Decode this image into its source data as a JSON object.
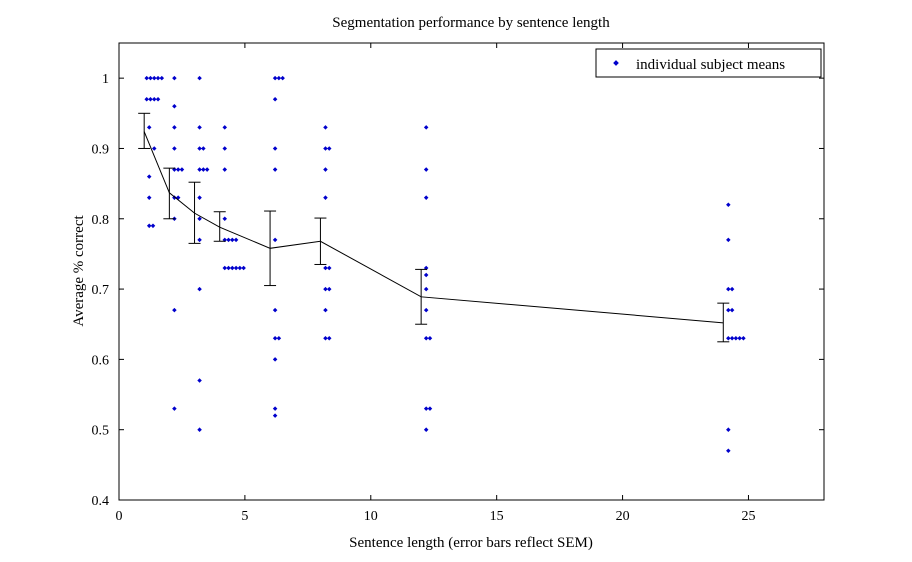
{
  "chart_data": {
    "type": "scatter",
    "title": "Segmentation performance by sentence length",
    "xlabel": "Sentence length (error bars reflect SEM)",
    "ylabel": "Average % correct",
    "xlim": [
      0,
      28
    ],
    "ylim": [
      0.4,
      1.05
    ],
    "xticks": [
      0,
      5,
      10,
      15,
      20,
      25
    ],
    "yticks": [
      0.4,
      0.5,
      0.6,
      0.7,
      0.8,
      0.9,
      1.0
    ],
    "xtick_labels": [
      "0",
      "5",
      "10",
      "15",
      "20",
      "25"
    ],
    "ytick_labels": [
      "0.4",
      "0.5",
      "0.6",
      "0.7",
      "0.8",
      "0.9",
      "1"
    ],
    "grid": false,
    "legend": {
      "position": "top-right",
      "entries": [
        "individual subject means"
      ]
    },
    "colors": {
      "points": "#0000cc",
      "mean_line": "#000000"
    },
    "mean_series": {
      "x": [
        1,
        2,
        3,
        4,
        6,
        8,
        12,
        24
      ],
      "y": [
        0.924,
        0.837,
        0.808,
        0.788,
        0.758,
        0.768,
        0.689,
        0.652
      ],
      "sem_low": [
        0.9,
        0.8,
        0.765,
        0.768,
        0.705,
        0.735,
        0.65,
        0.625
      ],
      "sem_high": [
        0.95,
        0.872,
        0.852,
        0.81,
        0.811,
        0.801,
        0.728,
        0.68
      ]
    },
    "points": [
      {
        "x": 1.1,
        "y": 1.0
      },
      {
        "x": 1.25,
        "y": 1.0
      },
      {
        "x": 1.4,
        "y": 1.0
      },
      {
        "x": 1.55,
        "y": 1.0
      },
      {
        "x": 1.7,
        "y": 1.0
      },
      {
        "x": 1.1,
        "y": 0.97
      },
      {
        "x": 1.25,
        "y": 0.97
      },
      {
        "x": 1.4,
        "y": 0.97
      },
      {
        "x": 1.55,
        "y": 0.97
      },
      {
        "x": 1.2,
        "y": 0.93
      },
      {
        "x": 1.4,
        "y": 0.9
      },
      {
        "x": 1.2,
        "y": 0.86
      },
      {
        "x": 1.2,
        "y": 0.83
      },
      {
        "x": 1.2,
        "y": 0.79
      },
      {
        "x": 1.35,
        "y": 0.79
      },
      {
        "x": 2.2,
        "y": 1.0
      },
      {
        "x": 2.2,
        "y": 0.96
      },
      {
        "x": 2.2,
        "y": 0.93
      },
      {
        "x": 2.2,
        "y": 0.9
      },
      {
        "x": 2.2,
        "y": 0.87
      },
      {
        "x": 2.35,
        "y": 0.87
      },
      {
        "x": 2.5,
        "y": 0.87
      },
      {
        "x": 2.2,
        "y": 0.83
      },
      {
        "x": 2.35,
        "y": 0.83
      },
      {
        "x": 2.2,
        "y": 0.8
      },
      {
        "x": 2.2,
        "y": 0.67
      },
      {
        "x": 2.2,
        "y": 0.53
      },
      {
        "x": 3.2,
        "y": 1.0
      },
      {
        "x": 3.2,
        "y": 0.93
      },
      {
        "x": 3.2,
        "y": 0.9
      },
      {
        "x": 3.35,
        "y": 0.9
      },
      {
        "x": 3.2,
        "y": 0.87
      },
      {
        "x": 3.35,
        "y": 0.87
      },
      {
        "x": 3.5,
        "y": 0.87
      },
      {
        "x": 3.2,
        "y": 0.83
      },
      {
        "x": 3.2,
        "y": 0.8
      },
      {
        "x": 3.2,
        "y": 0.77
      },
      {
        "x": 3.2,
        "y": 0.7
      },
      {
        "x": 3.2,
        "y": 0.57
      },
      {
        "x": 3.2,
        "y": 0.5
      },
      {
        "x": 4.2,
        "y": 0.93
      },
      {
        "x": 4.2,
        "y": 0.9
      },
      {
        "x": 4.2,
        "y": 0.87
      },
      {
        "x": 4.2,
        "y": 0.8
      },
      {
        "x": 4.2,
        "y": 0.77
      },
      {
        "x": 4.35,
        "y": 0.77
      },
      {
        "x": 4.5,
        "y": 0.77
      },
      {
        "x": 4.65,
        "y": 0.77
      },
      {
        "x": 4.2,
        "y": 0.73
      },
      {
        "x": 4.35,
        "y": 0.73
      },
      {
        "x": 4.5,
        "y": 0.73
      },
      {
        "x": 4.65,
        "y": 0.73
      },
      {
        "x": 4.8,
        "y": 0.73
      },
      {
        "x": 4.95,
        "y": 0.73
      },
      {
        "x": 6.2,
        "y": 1.0
      },
      {
        "x": 6.35,
        "y": 1.0
      },
      {
        "x": 6.5,
        "y": 1.0
      },
      {
        "x": 6.2,
        "y": 0.97
      },
      {
        "x": 6.2,
        "y": 0.9
      },
      {
        "x": 6.2,
        "y": 0.87
      },
      {
        "x": 6.2,
        "y": 0.77
      },
      {
        "x": 6.2,
        "y": 0.67
      },
      {
        "x": 6.2,
        "y": 0.63
      },
      {
        "x": 6.35,
        "y": 0.63
      },
      {
        "x": 6.2,
        "y": 0.6
      },
      {
        "x": 6.2,
        "y": 0.53
      },
      {
        "x": 6.2,
        "y": 0.52
      },
      {
        "x": 8.2,
        "y": 0.93
      },
      {
        "x": 8.2,
        "y": 0.9
      },
      {
        "x": 8.35,
        "y": 0.9
      },
      {
        "x": 8.2,
        "y": 0.87
      },
      {
        "x": 8.2,
        "y": 0.83
      },
      {
        "x": 8.2,
        "y": 0.73
      },
      {
        "x": 8.35,
        "y": 0.73
      },
      {
        "x": 8.2,
        "y": 0.7
      },
      {
        "x": 8.35,
        "y": 0.7
      },
      {
        "x": 8.2,
        "y": 0.67
      },
      {
        "x": 8.2,
        "y": 0.63
      },
      {
        "x": 8.35,
        "y": 0.63
      },
      {
        "x": 12.2,
        "y": 0.93
      },
      {
        "x": 12.2,
        "y": 0.87
      },
      {
        "x": 12.2,
        "y": 0.83
      },
      {
        "x": 12.2,
        "y": 0.73
      },
      {
        "x": 12.2,
        "y": 0.72
      },
      {
        "x": 12.2,
        "y": 0.7
      },
      {
        "x": 12.2,
        "y": 0.67
      },
      {
        "x": 12.2,
        "y": 0.63
      },
      {
        "x": 12.35,
        "y": 0.63
      },
      {
        "x": 12.2,
        "y": 0.53
      },
      {
        "x": 12.35,
        "y": 0.53
      },
      {
        "x": 12.2,
        "y": 0.5
      },
      {
        "x": 24.2,
        "y": 0.82
      },
      {
        "x": 24.2,
        "y": 0.77
      },
      {
        "x": 24.2,
        "y": 0.7
      },
      {
        "x": 24.35,
        "y": 0.7
      },
      {
        "x": 24.2,
        "y": 0.67
      },
      {
        "x": 24.35,
        "y": 0.67
      },
      {
        "x": 24.2,
        "y": 0.63
      },
      {
        "x": 24.35,
        "y": 0.63
      },
      {
        "x": 24.5,
        "y": 0.63
      },
      {
        "x": 24.65,
        "y": 0.63
      },
      {
        "x": 24.8,
        "y": 0.63
      },
      {
        "x": 24.2,
        "y": 0.5
      },
      {
        "x": 24.2,
        "y": 0.47
      }
    ]
  }
}
